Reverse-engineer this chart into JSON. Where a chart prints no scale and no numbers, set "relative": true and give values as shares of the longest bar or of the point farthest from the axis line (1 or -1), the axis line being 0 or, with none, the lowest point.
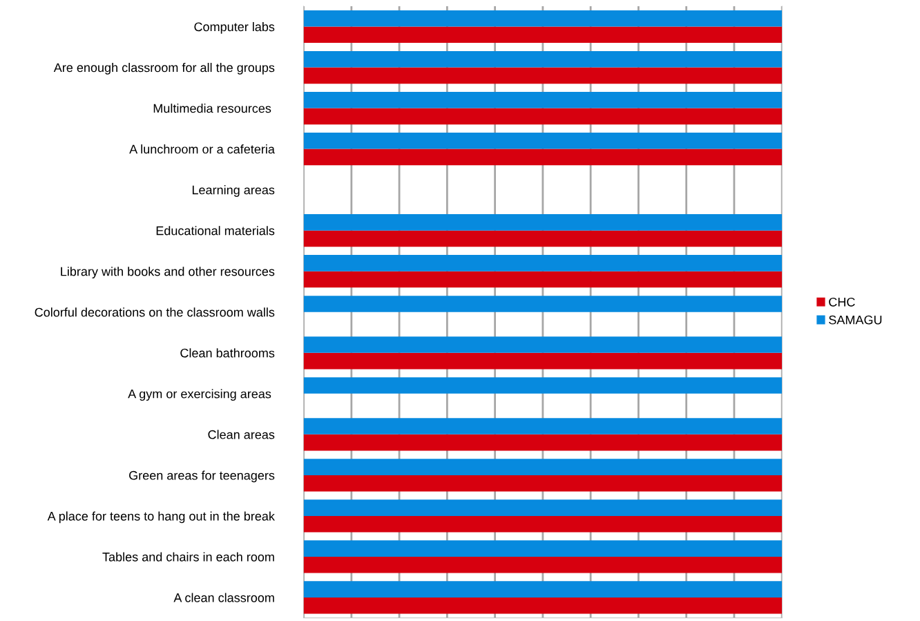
{
  "chart_data": {
    "type": "bar",
    "orientation": "horizontal",
    "relative": true,
    "grid": "x",
    "legend": "right",
    "categories": [
      "Computer labs",
      "Are enough classroom for all the groups",
      "Multimedia resources ",
      "A lunchroom or a cafeteria",
      "Learning areas",
      "Educational materials",
      "Library with books and other resources",
      "Colorful decorations on the classroom walls",
      "Clean bathrooms",
      "A gym or exercising areas ",
      "Clean areas",
      "Green areas for teenagers",
      "A place for teens to hang out in the break",
      "Tables and chairs in each room",
      "A clean classroom"
    ],
    "series": [
      {
        "name": "CHC",
        "color": "#d7000f",
        "values": [
          1,
          1,
          1,
          1,
          null,
          1,
          1,
          null,
          1,
          null,
          1,
          1,
          1,
          1,
          1
        ]
      },
      {
        "name": "SAMAGU",
        "color": "#078ade",
        "values": [
          1,
          1,
          1,
          1,
          null,
          1,
          1,
          1,
          1,
          1,
          1,
          1,
          1,
          1,
          1
        ]
      }
    ]
  }
}
